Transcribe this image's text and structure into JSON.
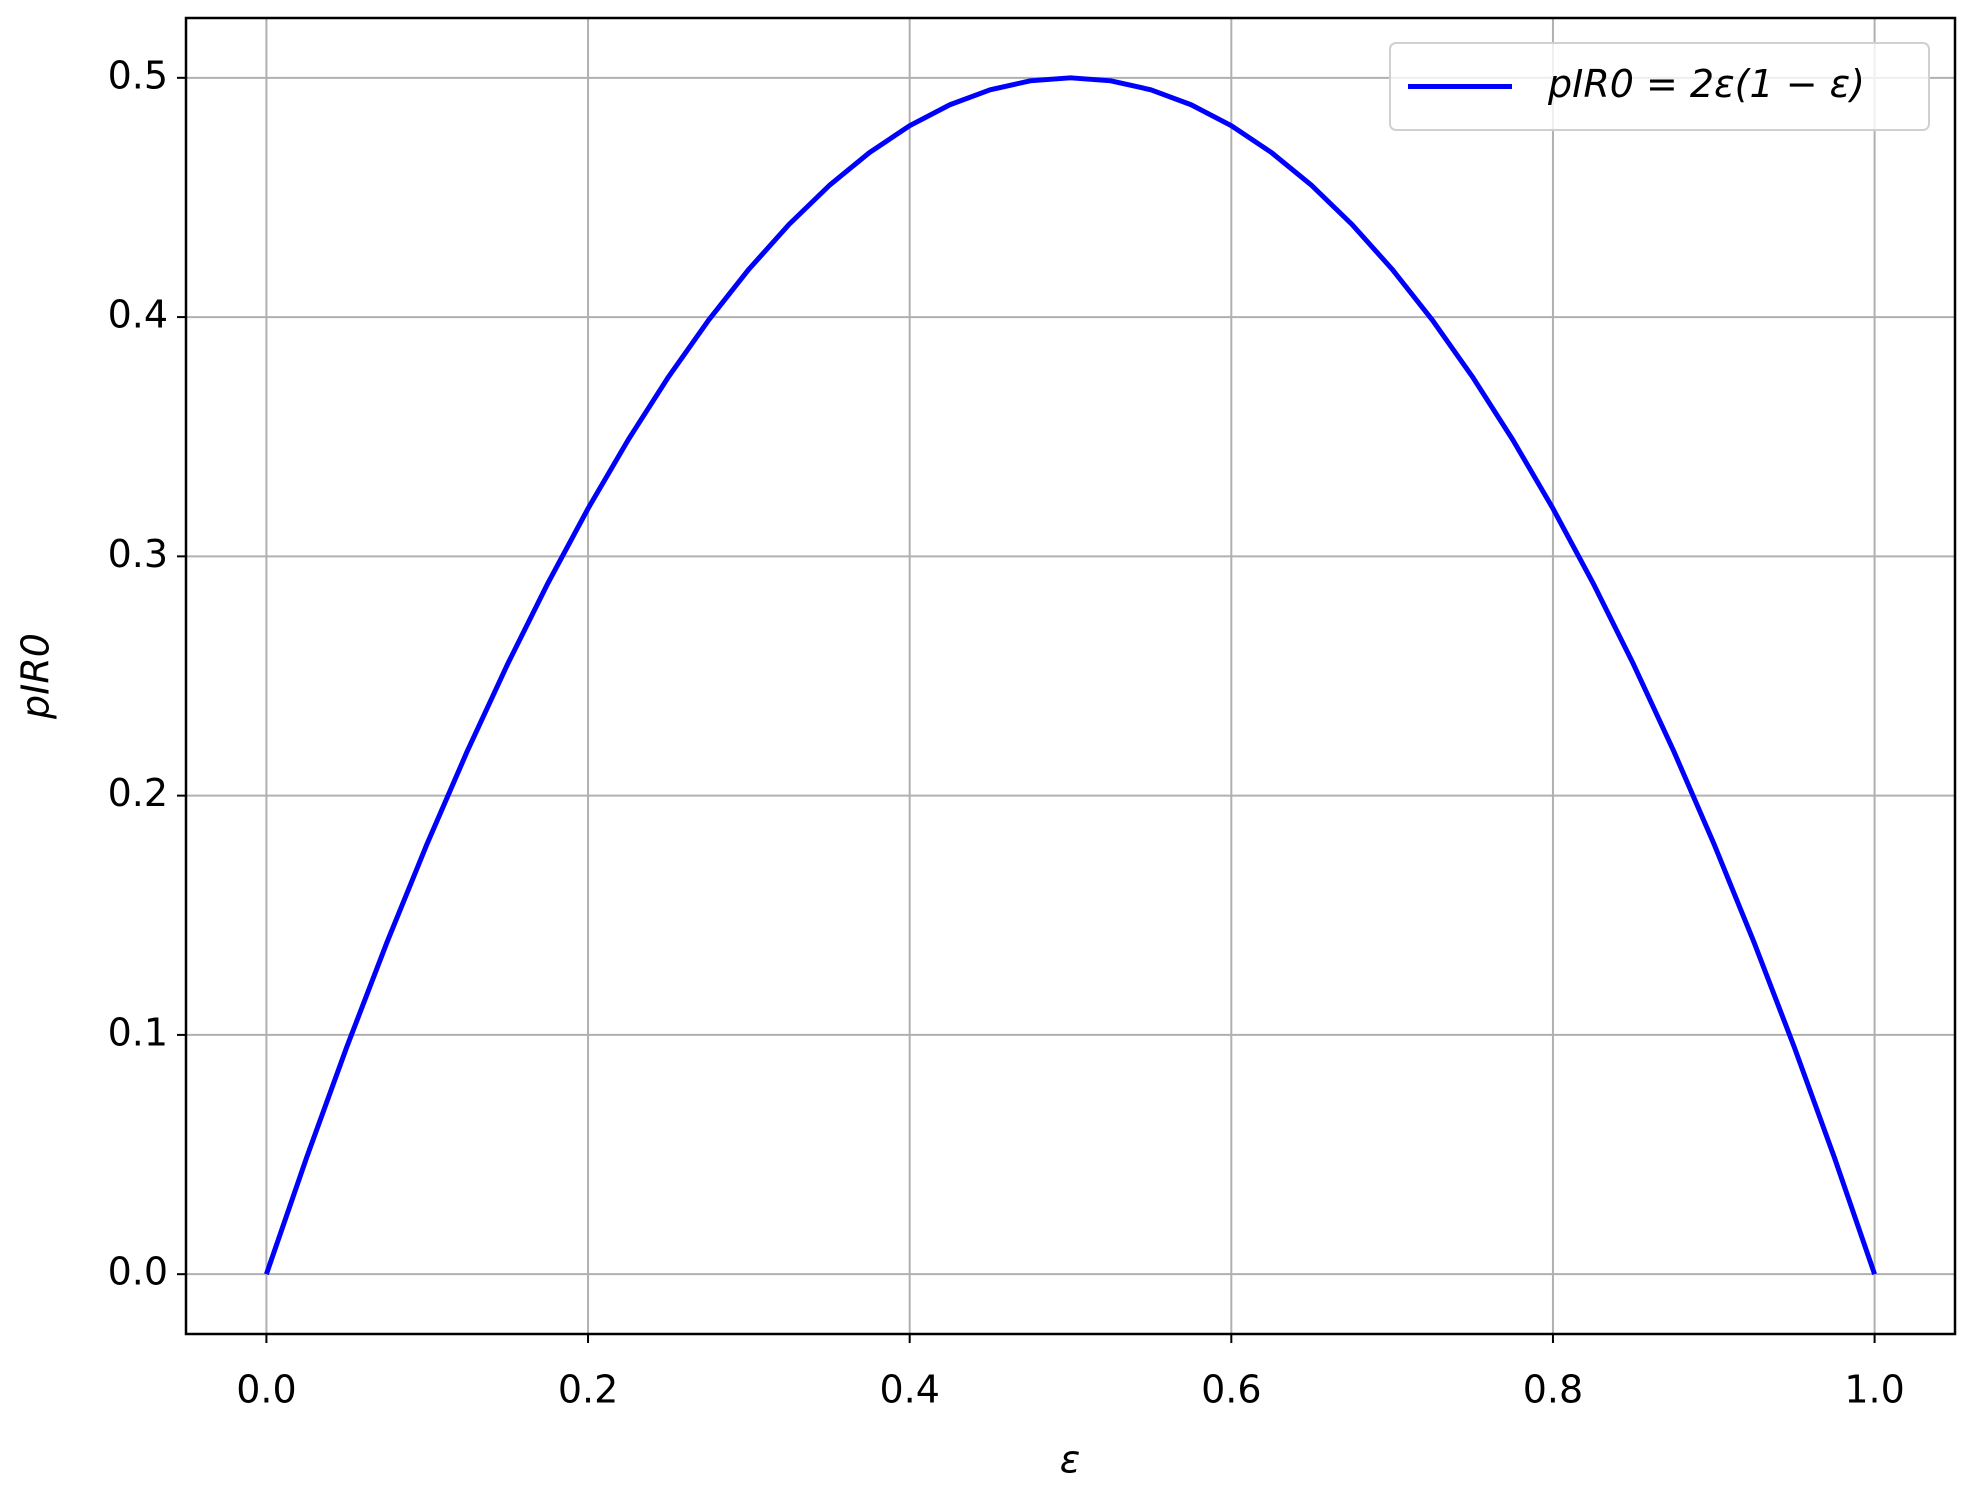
{
  "chart_data": {
    "type": "line",
    "x_label": "ε",
    "y_label": "pIR0",
    "x": [
      0,
      0.025,
      0.05,
      0.075,
      0.1,
      0.125,
      0.15,
      0.175,
      0.2,
      0.225,
      0.25,
      0.275,
      0.3,
      0.325,
      0.35,
      0.375,
      0.4,
      0.425,
      0.45,
      0.475,
      0.5,
      0.525,
      0.55,
      0.575,
      0.6,
      0.625,
      0.65,
      0.675,
      0.7,
      0.725,
      0.75,
      0.775,
      0.8,
      0.825,
      0.85,
      0.875,
      0.9,
      0.925,
      0.95,
      0.975,
      1
    ],
    "series": [
      {
        "name": "pIR0 = 2ε(1 − ε)",
        "color": "#0000ff",
        "values": [
          0,
          0.04875,
          0.095,
          0.13875,
          0.18,
          0.21875,
          0.255,
          0.28875,
          0.32,
          0.34875,
          0.375,
          0.39875,
          0.42,
          0.43875,
          0.455,
          0.46875,
          0.48,
          0.48875,
          0.495,
          0.49875,
          0.5,
          0.49875,
          0.495,
          0.48875,
          0.48,
          0.46875,
          0.455,
          0.43875,
          0.42,
          0.39875,
          0.375,
          0.34875,
          0.32,
          0.28875,
          0.255,
          0.21875,
          0.18,
          0.13875,
          0.095,
          0.04875,
          0
        ]
      }
    ],
    "xlim": [
      -0.05,
      1.05
    ],
    "ylim": [
      -0.025,
      0.525
    ],
    "xticks": [
      {
        "value": 0,
        "label": "0.0"
      },
      0.2,
      0.4,
      0.6,
      0.8,
      {
        "value": 1,
        "label": "1.0"
      }
    ],
    "yticks": [
      {
        "value": 0,
        "label": "0.0"
      },
      0.1,
      0.2,
      0.3,
      0.4,
      0.5
    ],
    "grid": true,
    "legend": "upper right"
  }
}
